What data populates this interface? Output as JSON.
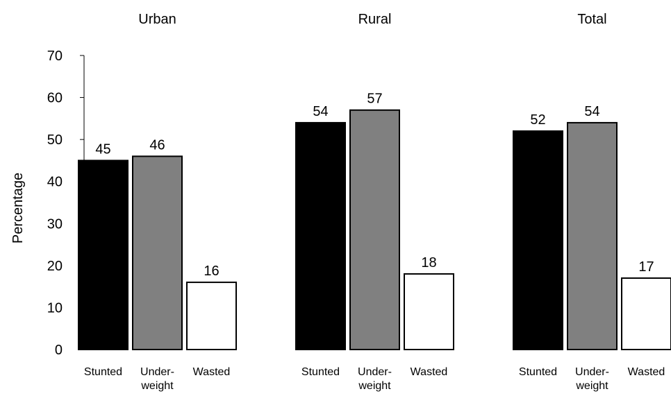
{
  "chart_data": {
    "type": "bar",
    "ylabel": "Percentage",
    "ylim": [
      0,
      70
    ],
    "yticks": [
      0,
      10,
      20,
      30,
      40,
      50,
      60,
      70
    ],
    "grid": false,
    "legend": "none",
    "groups": [
      {
        "title": "Urban",
        "bars": [
          {
            "category": [
              "Stunted"
            ],
            "value": 45,
            "label": "45",
            "color": "#000000"
          },
          {
            "category": [
              "Under-",
              "weight"
            ],
            "value": 46,
            "label": "46",
            "color": "#808080"
          },
          {
            "category": [
              "Wasted"
            ],
            "value": 16,
            "label": "16",
            "color": "#ffffff"
          }
        ]
      },
      {
        "title": "Rural",
        "bars": [
          {
            "category": [
              "Stunted"
            ],
            "value": 54,
            "label": "54",
            "color": "#000000"
          },
          {
            "category": [
              "Under-",
              "weight"
            ],
            "value": 57,
            "label": "57",
            "color": "#808080"
          },
          {
            "category": [
              "Wasted"
            ],
            "value": 18,
            "label": "18",
            "color": "#ffffff"
          }
        ]
      },
      {
        "title": "Total",
        "bars": [
          {
            "category": [
              "Stunted"
            ],
            "value": 52,
            "label": "52",
            "color": "#000000"
          },
          {
            "category": [
              "Under-",
              "weight"
            ],
            "value": 54,
            "label": "54",
            "color": "#808080"
          },
          {
            "category": [
              "Wasted"
            ],
            "value": 17,
            "label": "17",
            "color": "#ffffff"
          }
        ]
      }
    ]
  }
}
